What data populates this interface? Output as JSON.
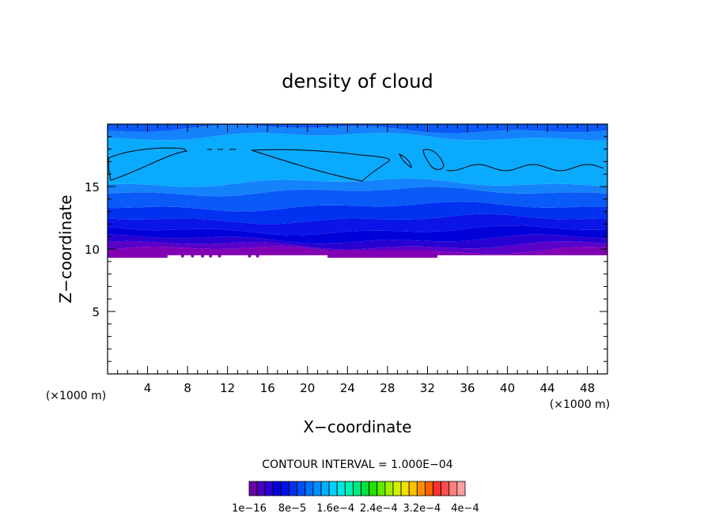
{
  "chart_data": {
    "type": "contour",
    "title": "density of cloud",
    "xlabel": "X−coordinate",
    "ylabel": "Z−coordinate",
    "x_unit_left": "(×1000 m)",
    "x_unit_right": "(×1000 m)",
    "xlim": [
      0,
      50
    ],
    "ylim": [
      0,
      20
    ],
    "x_ticks": [
      4,
      8,
      12,
      16,
      20,
      24,
      28,
      32,
      36,
      40,
      44,
      48
    ],
    "x_tick_labels": [
      "4",
      "8",
      "12",
      "16",
      "20",
      "24",
      "28",
      "32",
      "36",
      "40",
      "44",
      "48"
    ],
    "y_ticks": [
      5,
      10,
      15
    ],
    "y_tick_labels": [
      "5",
      "10",
      "15"
    ],
    "contour_interval_text": "CONTOUR INTERVAL = 1.000E−04",
    "colorbar_labels": [
      "1e−16",
      "8e−5",
      "1.6e−4",
      "2.4e−4",
      "3.2e−4",
      "4e−4"
    ],
    "colorbar_colors": [
      "#6a00a8",
      "#4b00c0",
      "#2a00d4",
      "#0000d8",
      "#0010e8",
      "#0030f0",
      "#0050f8",
      "#0070ff",
      "#0090ff",
      "#00b0ff",
      "#00d0ff",
      "#00e8e0",
      "#00f0b0",
      "#00e880",
      "#00e040",
      "#20e000",
      "#60e800",
      "#a0f000",
      "#d0f000",
      "#f0e000",
      "#ffc000",
      "#ff9000",
      "#ff6000",
      "#ff3030",
      "#ff5050",
      "#ff8080",
      "#ffa0a0"
    ],
    "cloud_bands": [
      {
        "z0": 9.5,
        "z1": 9.9,
        "color": "#8200b4"
      },
      {
        "z0": 9.9,
        "z1": 10.3,
        "color": "#5a00c8"
      },
      {
        "z0": 10.3,
        "z1": 10.8,
        "color": "#2800d2"
      },
      {
        "z0": 10.8,
        "z1": 11.5,
        "color": "#0000d8"
      },
      {
        "z0": 11.5,
        "z1": 12.4,
        "color": "#0a14e6"
      },
      {
        "z0": 12.4,
        "z1": 13.4,
        "color": "#0032f0"
      },
      {
        "z0": 13.4,
        "z1": 14.6,
        "color": "#0a5af8"
      },
      {
        "z0": 14.6,
        "z1": 15.3,
        "color": "#1482fa"
      },
      {
        "z0": 15.3,
        "z1": 19.0,
        "color": "#0aaaff"
      },
      {
        "z0": 19.0,
        "z1": 19.6,
        "color": "#1482fa"
      },
      {
        "z0": 19.6,
        "z1": 20.0,
        "color": "#0a5af8"
      }
    ]
  }
}
